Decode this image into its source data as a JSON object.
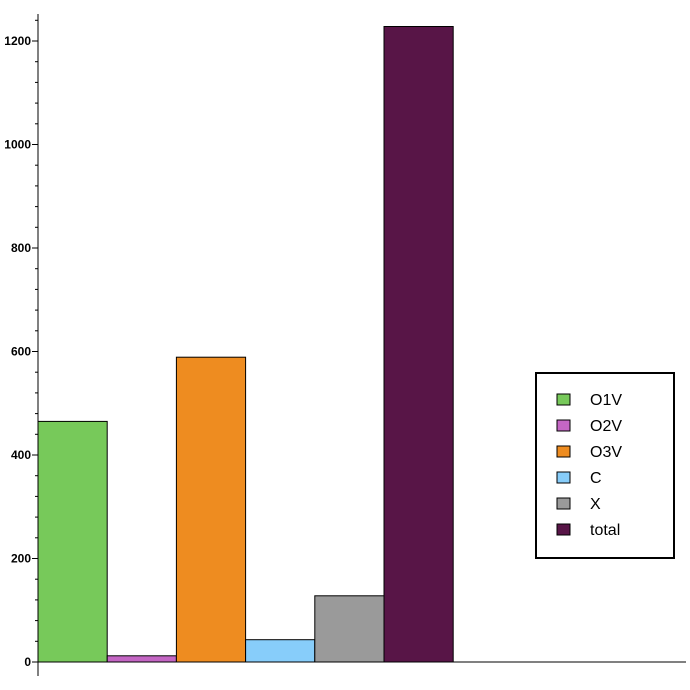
{
  "chart_data": {
    "type": "bar",
    "categories": [
      "O1V",
      "O2V",
      "O3V",
      "C",
      "X",
      "total"
    ],
    "values": [
      465,
      12,
      589,
      43,
      128,
      1228
    ],
    "colors": [
      "#77c95a",
      "#c466c4",
      "#ee8c20",
      "#87cdfa",
      "#9a9a9a",
      "#581547"
    ],
    "ylim": [
      0,
      1250
    ],
    "yticks": [
      0,
      200,
      400,
      600,
      800,
      1000,
      1200
    ],
    "legend_position": "right",
    "grid": false
  }
}
